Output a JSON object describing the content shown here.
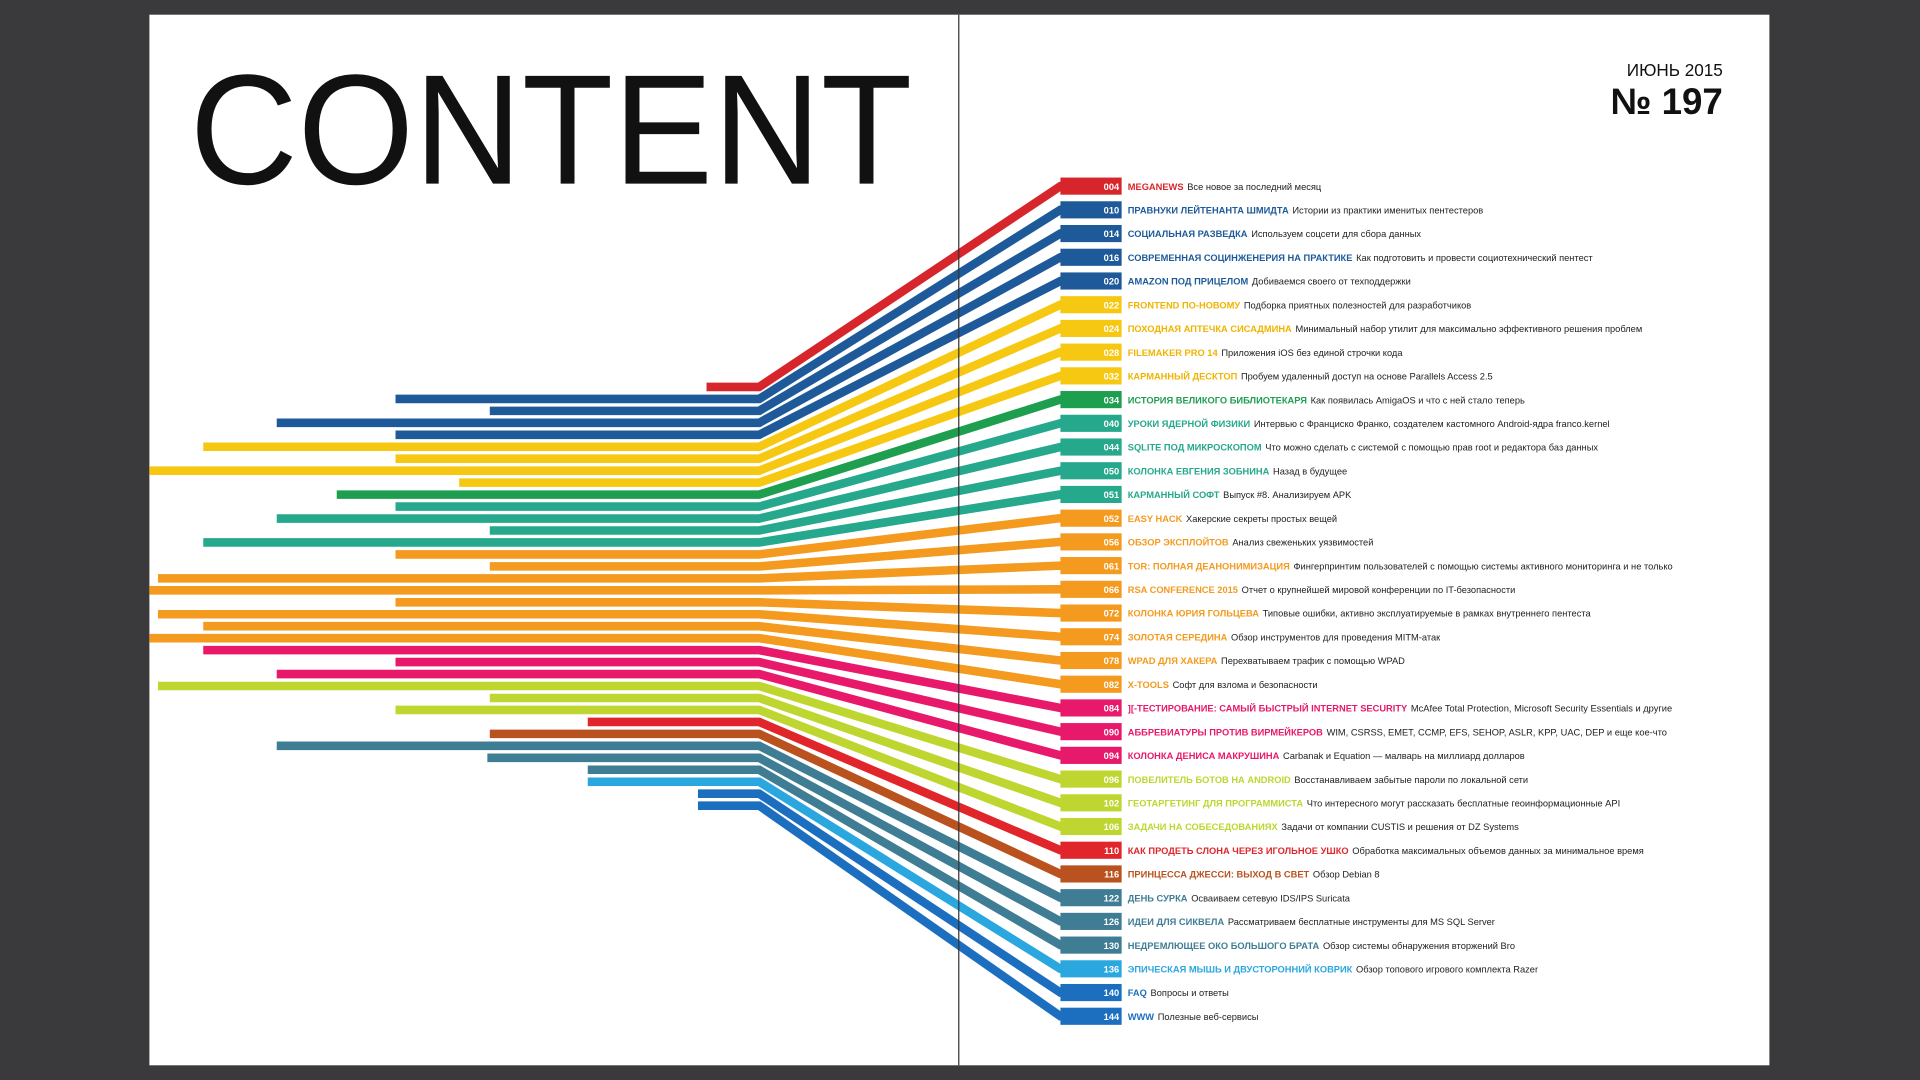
{
  "header": {
    "title": "CONTENT",
    "issue_date": "ИЮНЬ 2015",
    "issue_number": "№ 197"
  },
  "entries": [
    {
      "page": "004",
      "title": "MEGANEWS",
      "desc": "Все новое за последний месяц"
    },
    {
      "page": "010",
      "title": "ПРАВНУКИ ЛЕЙТЕНАНТА ШМИДТА",
      "desc": "Истории из практики именитых пентестеров"
    },
    {
      "page": "014",
      "title": "СОЦИАЛЬНАЯ РАЗВЕДКА",
      "desc": "Используем соцсети для сбора данных"
    },
    {
      "page": "016",
      "title": "СОВРЕМЕННАЯ СОЦИНЖЕНЕРИЯ НА ПРАКТИКЕ",
      "desc": "Как подготовить и провести социотехнический пентест"
    },
    {
      "page": "020",
      "title": "AMAZON ПОД ПРИЦЕЛОМ",
      "desc": "Добиваемся своего от техподдержки"
    },
    {
      "page": "022",
      "title": "FRONTEND ПО-НОВОМУ",
      "desc": "Подборка приятных полезностей для разработчиков"
    },
    {
      "page": "024",
      "title": "ПОХОДНАЯ АПТЕЧКА СИСАДМИНА",
      "desc": "Минимальный набор утилит для максимально эффективного решения проблем"
    },
    {
      "page": "028",
      "title": "FILEMAKER PRO 14",
      "desc": "Приложения iOS без единой строчки кода"
    },
    {
      "page": "032",
      "title": "КАРМАННЫЙ ДЕСКТОП",
      "desc": "Пробуем удаленный доступ на основе Parallels Access 2.5"
    },
    {
      "page": "034",
      "title": "ИСТОРИЯ ВЕЛИКОГО БИБЛИОТЕКАРЯ",
      "desc": "Как появилась AmigaOS и что с ней стало теперь"
    },
    {
      "page": "040",
      "title": "УРОКИ ЯДЕРНОЙ ФИЗИКИ",
      "desc": "Интервью с Франциско Франко, создателем кастомного Android-ядра franco.kernel"
    },
    {
      "page": "044",
      "title": "SQLITE ПОД МИКРОСКОПОМ",
      "desc": "Что можно сделать с системой с помощью прав root и редактора баз данных"
    },
    {
      "page": "050",
      "title": "КОЛОНКА ЕВГЕНИЯ ЗОБНИНА",
      "desc": "Назад в будущее"
    },
    {
      "page": "051",
      "title": "КАРМАННЫЙ СОФТ",
      "desc": "Выпуск #8. Анализируем APK"
    },
    {
      "page": "052",
      "title": "EASY HACK",
      "desc": "Хакерские секреты простых вещей"
    },
    {
      "page": "056",
      "title": "ОБЗОР ЭКСПЛОЙТОВ",
      "desc": "Анализ свеженьких уязвимостей"
    },
    {
      "page": "061",
      "title": "TOR: ПОЛНАЯ ДЕАНОНИМИЗАЦИЯ",
      "desc": "Фингерпринтим пользователей с помощью системы активного мониторинга и не только"
    },
    {
      "page": "066",
      "title": "RSA CONFERENCE 2015",
      "desc": "Отчет о крупнейшей мировой конференции по IT-безопасности"
    },
    {
      "page": "072",
      "title": "КОЛОНКА ЮРИЯ ГОЛЬЦЕВА",
      "desc": "Типовые ошибки, активно эксплуатируемые в рамках внутреннего пентеста"
    },
    {
      "page": "074",
      "title": "ЗОЛОТАЯ СЕРЕДИНА",
      "desc": "Обзор инструментов для проведения MITM-атак"
    },
    {
      "page": "078",
      "title": "WPAD ДЛЯ ХАКЕРА",
      "desc": "Перехватываем трафик с помощью WPAD"
    },
    {
      "page": "082",
      "title": "X-TOOLS",
      "desc": "Софт для взлома и безопасности"
    },
    {
      "page": "084",
      "title": "][-ТЕСТИРОВАНИЕ: САМЫЙ БЫСТРЫЙ INTERNET SECURITY",
      "desc": "McAfee Total Protection, Microsoft Security Essentials и другие"
    },
    {
      "page": "090",
      "title": "АББРЕВИАТУРЫ ПРОТИВ ВИРМЕЙКЕРОВ",
      "desc": "WIM, CSRSS, EMET, CCMP, EFS, SEHOP, ASLR, KPP, UAC, DEP и еще кое-что"
    },
    {
      "page": "094",
      "title": "КОЛОНКА ДЕНИСА МАКРУШИНА",
      "desc": "Carbanak и Equation — малварь на миллиард долларов"
    },
    {
      "page": "096",
      "title": "ПОВЕЛИТЕЛЬ БОТОВ НА ANDROID",
      "desc": "Восстанавливаем забытые пароли по локальной сети"
    },
    {
      "page": "102",
      "title": "ГЕОТАРГЕТИНГ ДЛЯ ПРОГРАММИСТА",
      "desc": "Что интересного могут рассказать бесплатные геоинформационные API"
    },
    {
      "page": "106",
      "title": "ЗАДАЧИ НА СОБЕСЕДОВАНИЯХ",
      "desc": "Задачи от компании CUSTIS и решения от DZ Systems"
    },
    {
      "page": "110",
      "title": "КАК ПРОДЕТЬ СЛОНА ЧЕРЕЗ ИГОЛЬНОЕ УШКО",
      "desc": "Обработка максимальных объемов данных за минимальное время"
    },
    {
      "page": "116",
      "title": "ПРИНЦЕССА ДЖЕССИ: ВЫХОД В СВЕТ",
      "desc": "Обзор Debian 8"
    },
    {
      "page": "122",
      "title": "ДЕНЬ СУРКА",
      "desc": "Осваиваем сетевую IDS/IPS Suricata"
    },
    {
      "page": "126",
      "title": "ИДЕИ ДЛЯ СИКВЕЛА",
      "desc": "Рассматриваем бесплатные инструменты для MS SQL Server"
    },
    {
      "page": "130",
      "title": "НЕДРЕМЛЮЩЕЕ ОКО БОЛЬШОГО БРАТА",
      "desc": "Обзор системы обнаружения вторжений Bro"
    },
    {
      "page": "136",
      "title": "ЭПИЧЕСКАЯ МЫШЬ И ДВУСТОРОННИЙ КОВРИК",
      "desc": "Обзор топового игрового комплекта Razer"
    },
    {
      "page": "140",
      "title": "FAQ",
      "desc": "Вопросы и ответы"
    },
    {
      "page": "144",
      "title": "WWW",
      "desc": "Полезные веб-сервисы"
    }
  ]
}
